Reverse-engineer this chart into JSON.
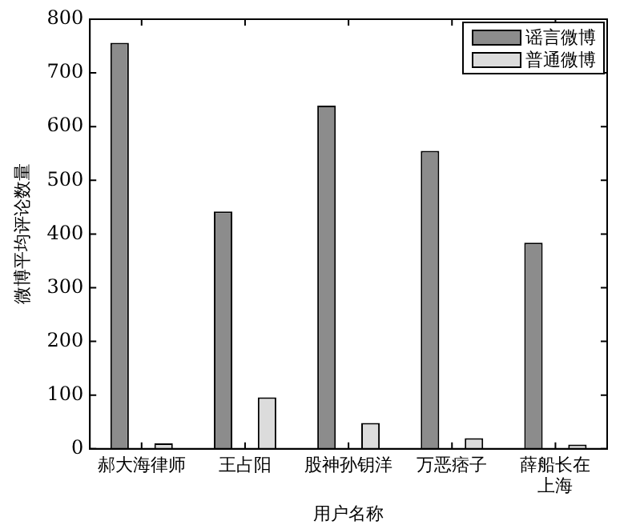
{
  "chart_data": {
    "type": "bar",
    "xlabel": "用户名称",
    "ylabel": "微博平均评论数量",
    "categories": [
      "郝大海律师",
      "王占阳",
      "股神孙钥洋",
      "万恶痞子",
      "薛船长在上海"
    ],
    "series": [
      {
        "name": "谣言微博",
        "color": "#8c8c8c",
        "values": [
          756,
          442,
          639,
          555,
          384
        ]
      },
      {
        "name": "普通微博",
        "color": "#dcdcdc",
        "values": [
          10,
          96,
          48,
          20,
          8
        ]
      }
    ],
    "ylim": [
      0,
      800
    ],
    "yticks": [
      0,
      100,
      200,
      300,
      400,
      500,
      600,
      700,
      800
    ],
    "grid": false,
    "legend": "top right"
  }
}
